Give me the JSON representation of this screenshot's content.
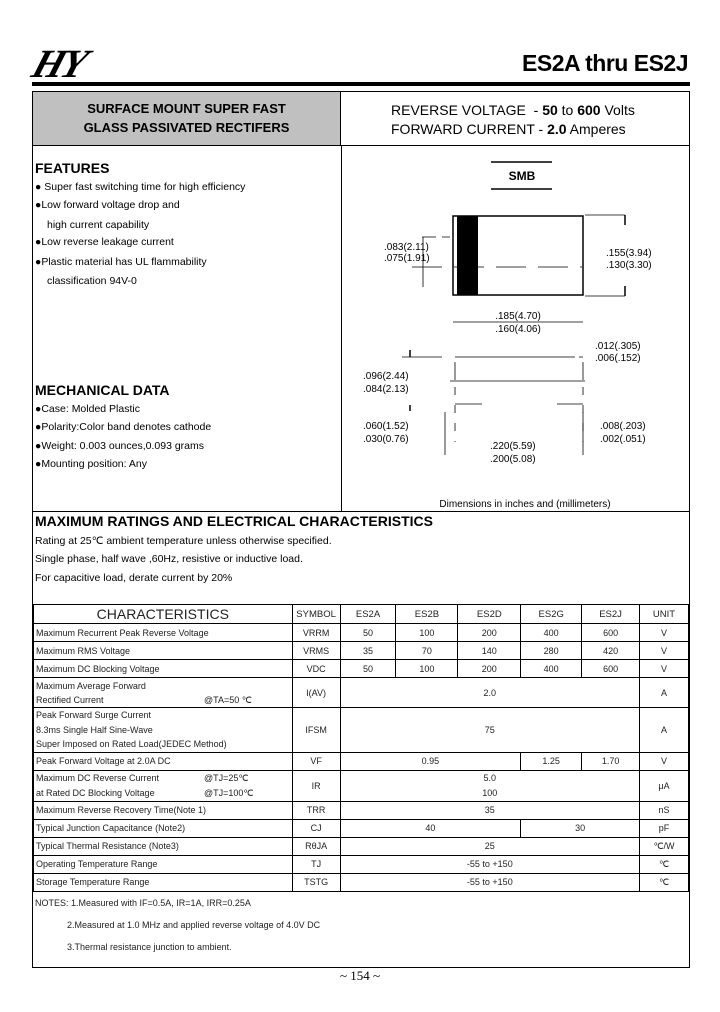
{
  "header": {
    "logo": "HY",
    "title": "ES2A thru ES2J"
  },
  "banner": {
    "line1": "SURFACE MOUNT SUPER FAST",
    "line2": "GLASS PASSIVATED RECTIFERS",
    "rv_label": "REVERSE VOLTAGE  - ",
    "rv_value": "50",
    "rv_to": " to ",
    "rv_value2": "600",
    "rv_unit": " Volts",
    "fc_label": "FORWARD CURRENT - ",
    "fc_value": "2.0",
    "fc_unit": " Amperes"
  },
  "features": {
    "title": "FEATURES",
    "items": [
      "● Super fast switching time for high efficiency",
      "●Low forward voltage drop and",
      "high current capability",
      "●Low reverse leakage current",
      "●Plastic material has UL flammability",
      "classification 94V-0"
    ]
  },
  "mechanical": {
    "title": "MECHANICAL DATA",
    "items": [
      "●Case:   Molded Plastic",
      "●Polarity:Color band denotes cathode",
      "●Weight: 0.003 ounces,0.093 grams",
      "●Mounting position: Any"
    ]
  },
  "diagram": {
    "package": "SMB",
    "dims": {
      "a1": ".083(2.11)",
      "a2": ".075(1.91)",
      "b1": ".155(3.94)",
      "b2": ".130(3.30)",
      "c1": ".185(4.70)",
      "c2": ".160(4.06)",
      "d1": ".012(.305)",
      "d2": ".006(.152)",
      "e1": ".096(2.44)",
      "e2": ".084(2.13)",
      "f1": ".060(1.52)",
      "f2": ".030(0.76)",
      "g1": ".220(5.59)",
      "g2": ".200(5.08)",
      "h1": ".008(.203)",
      "h2": ".002(.051)"
    },
    "caption": "Dimensions in inches and (millimeters)"
  },
  "ratings": {
    "title": "MAXIMUM RATINGS AND ELECTRICAL CHARACTERISTICS",
    "lines": [
      "Rating at 25℃ ambient temperature unless otherwise specified.",
      "Single phase, half wave ,60Hz, resistive or inductive load.",
      "For capacitive load, derate current by 20%"
    ]
  },
  "table": {
    "headers": [
      "CHARACTERISTICS",
      "SYMBOL",
      "ES2A",
      "ES2B",
      "ES2D",
      "ES2G",
      "ES2J",
      "UNIT"
    ],
    "rows": [
      {
        "name": "Maximum Recurrent Peak Reverse Voltage",
        "symbol": "VRRM",
        "values": [
          "50",
          "100",
          "200",
          "400",
          "600"
        ],
        "unit": "V"
      },
      {
        "name": "Maximum RMS Voltage",
        "symbol": "VRMS",
        "values": [
          "35",
          "70",
          "140",
          "280",
          "420"
        ],
        "unit": "V"
      },
      {
        "name": "Maximum DC Blocking Voltage",
        "symbol": "VDC",
        "values": [
          "50",
          "100",
          "200",
          "400",
          "600"
        ],
        "unit": "V"
      },
      {
        "name": "Maximum Average Forward",
        "name2": "Rectified Current",
        "cond": "@TA=50 ℃",
        "symbol": "I(AV)",
        "value": "2.0",
        "unit": "A"
      },
      {
        "name": "Peak Forward Surge Current",
        "name2": "8.3ms Single Half Sine-Wave",
        "name3": "Super Imposed on Rated Load(JEDEC Method)",
        "symbol": "IFSM",
        "value": "75",
        "unit": "A"
      },
      {
        "name": "Peak Forward Voltage at 2.0A DC",
        "symbol": "VF",
        "v1": "0.95",
        "v2": "1.25",
        "v3": "1.70",
        "unit": "V"
      },
      {
        "name": "Maximum DC Reverse Current",
        "cond": "@TJ=25℃",
        "name2": "at Rated DC Blocking Voltage",
        "cond2": "@TJ=100℃",
        "symbol": "IR",
        "value": "5.0",
        "value2": "100",
        "unit": "μA"
      },
      {
        "name": "Maximum Reverse Recovery Time(Note 1)",
        "symbol": "TRR",
        "value": "35",
        "unit": "nS"
      },
      {
        "name": "Typical Junction  Capacitance (Note2)",
        "symbol": "CJ",
        "v1": "40",
        "v2": "30",
        "unit": "pF"
      },
      {
        "name": "Typical Thermal Resistance (Note3)",
        "symbol": "RθJA",
        "value": "25",
        "unit": "℃/W"
      },
      {
        "name": "Operating Temperature Range",
        "symbol": "TJ",
        "value": "-55 to +150",
        "unit": "℃"
      },
      {
        "name": "Storage Temperature Range",
        "symbol": "TSTG",
        "value": "-55 to +150",
        "unit": "℃"
      }
    ]
  },
  "notes": [
    "NOTES: 1.Measured with IF=0.5A, IR=1A, IRR=0.25A",
    "2.Measured at 1.0 MHz and applied reverse voltage of 4.0V DC",
    "3.Thermal resistance junction to ambient."
  ],
  "page": "~ 154 ~"
}
